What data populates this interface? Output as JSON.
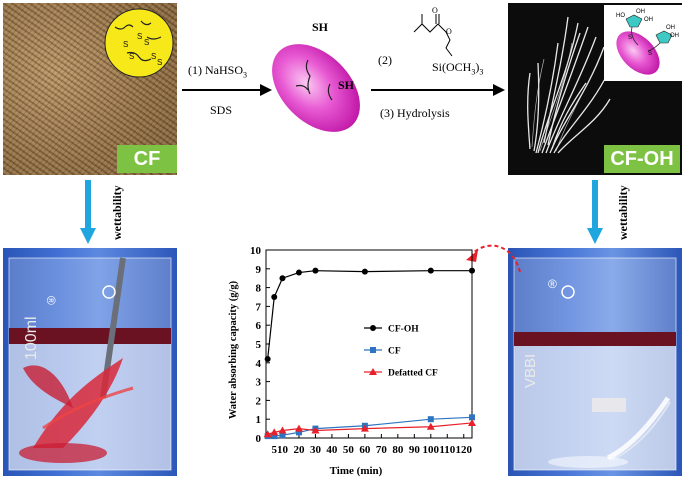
{
  "top_left": {
    "label": "CF"
  },
  "top_right": {
    "label": "CF-OH"
  },
  "reaction": {
    "step1": "(1) NaHSO",
    "step1_sub": "3",
    "step1_below": "SDS",
    "step2": "(2)",
    "step3": "(3) Hydrolysis",
    "reagent_label": "Si(OCH",
    "reagent_sub": "3",
    "reagent_end": ")",
    "reagent_sub2": "3",
    "sh_top": "SH",
    "sh_right": "SH"
  },
  "side_labels": {
    "left": "wettability",
    "right": "wettability"
  },
  "beaker_text": {
    "left": "100ml",
    "right": "VBBI"
  },
  "colors": {
    "label_green": "#7dc242",
    "arrow_blue": "#1fa6de",
    "ellipse_magenta": "#e040c8",
    "cf_oh_series": "#000000",
    "cf_series": "#2e74c0",
    "defatted_series": "#e8202a",
    "dashed_arrow": "#e8202a"
  },
  "chart_data": {
    "type": "line",
    "xlabel": "Time (min)",
    "ylabel": "Water absorbing capacity (g/g)",
    "xlim": [
      0,
      125
    ],
    "ylim": [
      0,
      10
    ],
    "xticks": [
      5,
      10,
      20,
      30,
      40,
      50,
      60,
      70,
      80,
      90,
      100,
      110,
      120
    ],
    "yticks": [
      0,
      1,
      2,
      3,
      4,
      5,
      6,
      7,
      8,
      9,
      10
    ],
    "legend_position": "center-right",
    "series": [
      {
        "name": "CF-OH",
        "marker": "circle",
        "color": "#000000",
        "x": [
          1,
          5,
          10,
          20,
          30,
          60,
          100,
          125
        ],
        "y": [
          4.2,
          7.5,
          8.5,
          8.8,
          8.9,
          8.85,
          8.9,
          8.9
        ]
      },
      {
        "name": "CF",
        "marker": "square",
        "color": "#2e74c0",
        "x": [
          1,
          5,
          10,
          20,
          30,
          60,
          100,
          125
        ],
        "y": [
          0.1,
          0.1,
          0.15,
          0.3,
          0.5,
          0.65,
          1.0,
          1.1
        ]
      },
      {
        "name": "Defatted CF",
        "marker": "triangle",
        "color": "#e8202a",
        "x": [
          1,
          5,
          10,
          20,
          30,
          60,
          100,
          125
        ],
        "y": [
          0.2,
          0.3,
          0.4,
          0.5,
          0.4,
          0.5,
          0.6,
          0.8
        ]
      }
    ]
  }
}
